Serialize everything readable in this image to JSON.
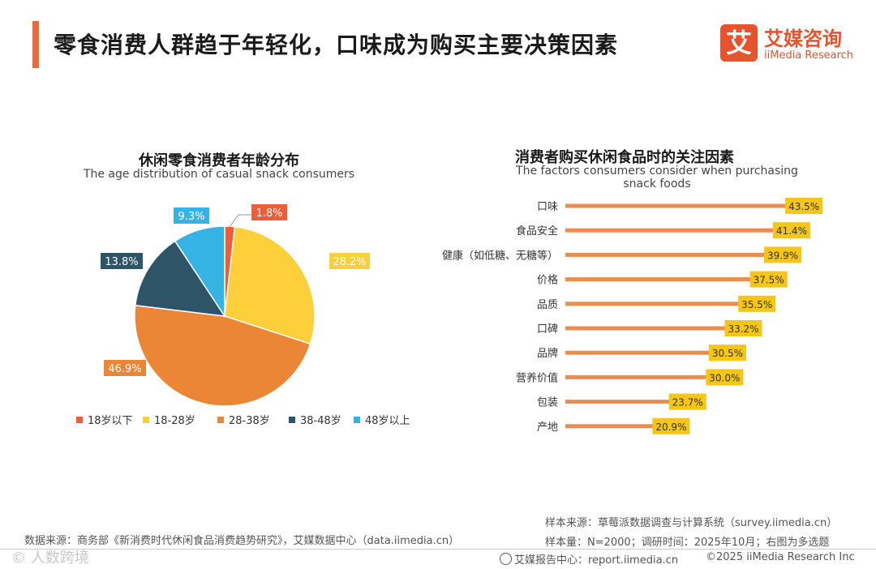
{
  "header": {
    "title": "零食消费人群趋于年轻化，口味成为购买主要决策因素",
    "logo_mark": "艾",
    "logo_cn": "艾媒咨询",
    "logo_en": "iiMedia Research"
  },
  "colors": {
    "accent": "#ea6a3a",
    "bar": "#ea8d4f",
    "label_bg": "#f5c518",
    "pie": [
      "#eb5e3a",
      "#fdd03b",
      "#ea8636",
      "#2e5567",
      "#35b4e4"
    ]
  },
  "chart_data": [
    {
      "type": "pie",
      "title": "休闲零食消费者年龄分布",
      "subtitle": "The age distribution of casual snack consumers",
      "legend_position": "bottom",
      "slices": [
        {
          "name": "18岁以下",
          "value": 1.8,
          "label": "1.8%"
        },
        {
          "name": "18-28岁",
          "value": 28.2,
          "label": "28.2%"
        },
        {
          "name": "28-38岁",
          "value": 46.9,
          "label": "46.9%"
        },
        {
          "name": "38-48岁",
          "value": 13.8,
          "label": "13.8%"
        },
        {
          "name": "48岁以上",
          "value": 9.3,
          "label": "9.3%"
        }
      ]
    },
    {
      "type": "bar",
      "orientation": "horizontal",
      "title": "消费者购买休闲食品时的关注因素",
      "subtitle": "The factors consumers consider when purchasing snack foods",
      "categories": [
        "口味",
        "食品安全",
        "健康（如低糖、无糖等）",
        "价格",
        "品质",
        "口碑",
        "品牌",
        "营养价值",
        "包装",
        "产地"
      ],
      "values": [
        43.5,
        41.4,
        39.9,
        37.5,
        35.5,
        33.2,
        30.5,
        30.0,
        23.7,
        20.9
      ],
      "labels": [
        "43.5%",
        "41.4%",
        "39.9%",
        "37.5%",
        "35.5%",
        "33.2%",
        "30.5%",
        "30.0%",
        "23.7%",
        "20.9%"
      ],
      "xlim": [
        0,
        45
      ]
    }
  ],
  "footer": {
    "data_source": "数据来源：商务部《新消费时代休闲食品消费趋势研究》，艾媒数据中心（data.iimedia.cn）",
    "sample_source": "样本来源：草莓派数据调查与计算系统（survey.iimedia.cn）",
    "sample_info": "样本量：N=2000；调研时间：2025年10月；右图为多选题",
    "report_center": "艾媒报告中心：report.iimedia.cn",
    "copyright": "©2025  iiMedia Research  Inc",
    "watermark": "© 人数跨境"
  }
}
